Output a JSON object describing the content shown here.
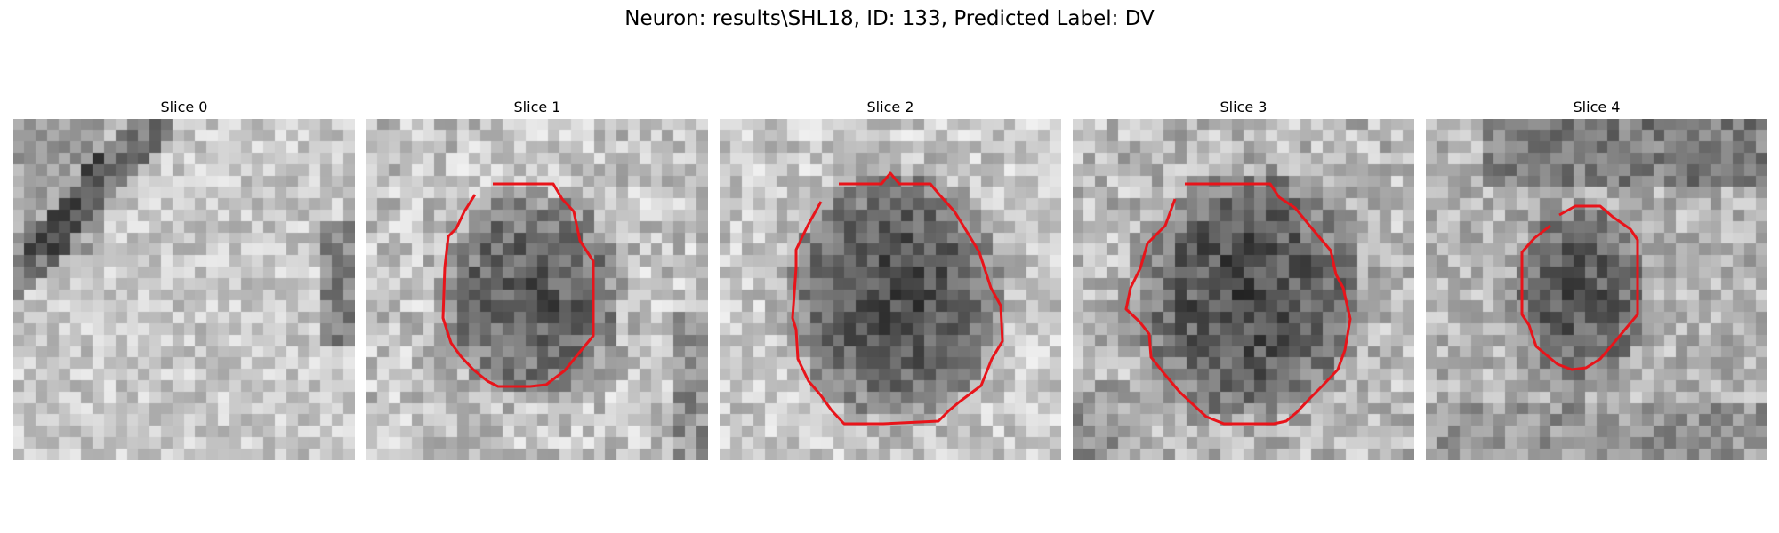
{
  "figure": {
    "title": "Neuron: results\\SHL18, ID: 133, Predicted Label: DV"
  },
  "slices": [
    {
      "title": "Slice 0",
      "has_contour": false
    },
    {
      "title": "Slice 1",
      "has_contour": true
    },
    {
      "title": "Slice 2",
      "has_contour": true
    },
    {
      "title": "Slice 3",
      "has_contour": true
    },
    {
      "title": "Slice 4",
      "has_contour": true
    }
  ],
  "colors": {
    "contour": "#e8141a",
    "background": "#ffffff"
  },
  "colormap": "gray"
}
